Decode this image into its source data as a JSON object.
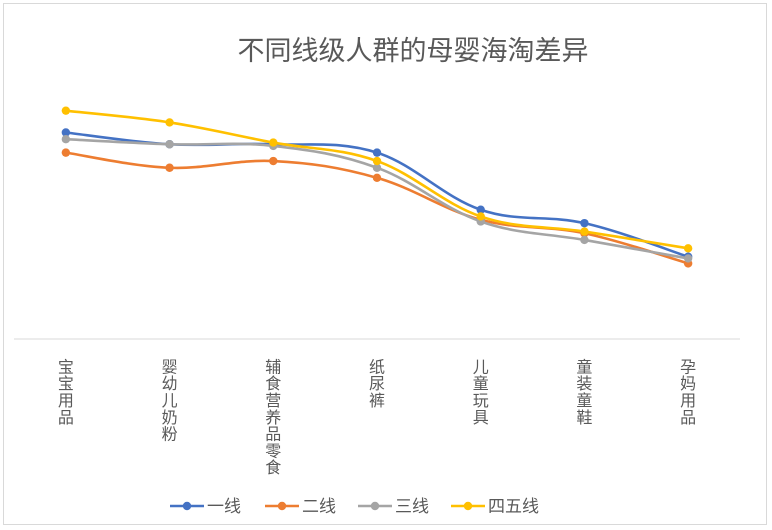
{
  "chart_data": {
    "type": "line",
    "title": "不同线级人群的母婴海淘差异",
    "categories": [
      "宝宝用品",
      "婴幼儿奶粉",
      "辅食营养品零食",
      "纸尿裤",
      "儿童玩具",
      "童装童鞋",
      "孕妈用品"
    ],
    "series": [
      {
        "name": "一线",
        "color": "#4472C4",
        "values": [
          9.3,
          8.6,
          8.6,
          8.1,
          4.7,
          3.9,
          1.9
        ]
      },
      {
        "name": "二线",
        "color": "#ED7D31",
        "values": [
          8.1,
          7.2,
          7.6,
          6.6,
          4.1,
          3.3,
          1.5
        ]
      },
      {
        "name": "三线",
        "color": "#A5A5A5",
        "values": [
          8.9,
          8.6,
          8.5,
          7.2,
          4.0,
          2.9,
          1.8
        ]
      },
      {
        "name": "四五线",
        "color": "#FFC000",
        "values": [
          10.6,
          9.9,
          8.7,
          7.6,
          4.3,
          3.4,
          2.4
        ]
      }
    ],
    "ylim": [
      -3,
      16
    ],
    "grid": false,
    "legend": "bottom",
    "xlabel": "",
    "ylabel": ""
  }
}
